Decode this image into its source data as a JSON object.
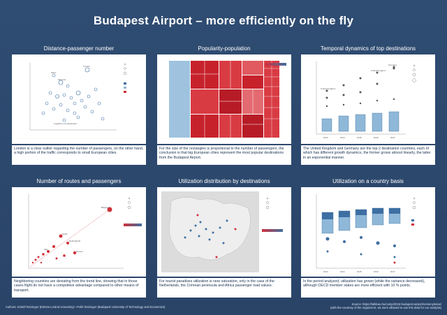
{
  "title": "Budapest Airport – more efficiently on the fly",
  "panels": [
    {
      "title": "Distance-passenger number",
      "caption": "London is a clear outlier regarding the number of passengers, on the other hand, a high portion of the traffic corresponds to small European cities."
    },
    {
      "title": "Popularity-population",
      "caption": "For the size of the rectangles is proportional to the number of passengers, the conclusion is that big European cities represent the most popular destinations from the Budapest Airport."
    },
    {
      "title": "Temporal dynamics of top destinations",
      "caption": "The United Kingdom and Germany are the top-2 destination countries, each of which has different growth dynamics, the former grows almost linearly, the latter in an exponential manner."
    },
    {
      "title": "Number of routes and passengers",
      "caption": "Neighboring countries are deviating from the trend line, showing that in those cases flight do not have a competitive advantage compared to other means of transport."
    },
    {
      "title": "Utilization distribution by destinations",
      "caption": "For tourist paradises utilization is near saturation, only in the case of the Netherlands, the Crimean peninsula and Africa passenger load values."
    },
    {
      "title": "Utilization on a country basis",
      "caption": "In the period analyzed, utilization has grown (while the variance decreased), although OECD member states are more efficient with 10 % points."
    }
  ],
  "footer": {
    "authors": "Authors: Kristóf Reizinger (Eötvös Loránd University)—Pollé Reizinger (Budapest University of Technology and Economics)",
    "source": "Source: https://tableau.hu/camp/2016-budapest-airport/versenyleiras/",
    "note": "(with the courtesy of the organizers, we were allowed to use this data for our analysis)"
  },
  "colors": {
    "background": "#2e4a6e",
    "red": "#d0313b",
    "blue": "#8fb8d8",
    "darkblue": "#3e6fa3"
  }
}
